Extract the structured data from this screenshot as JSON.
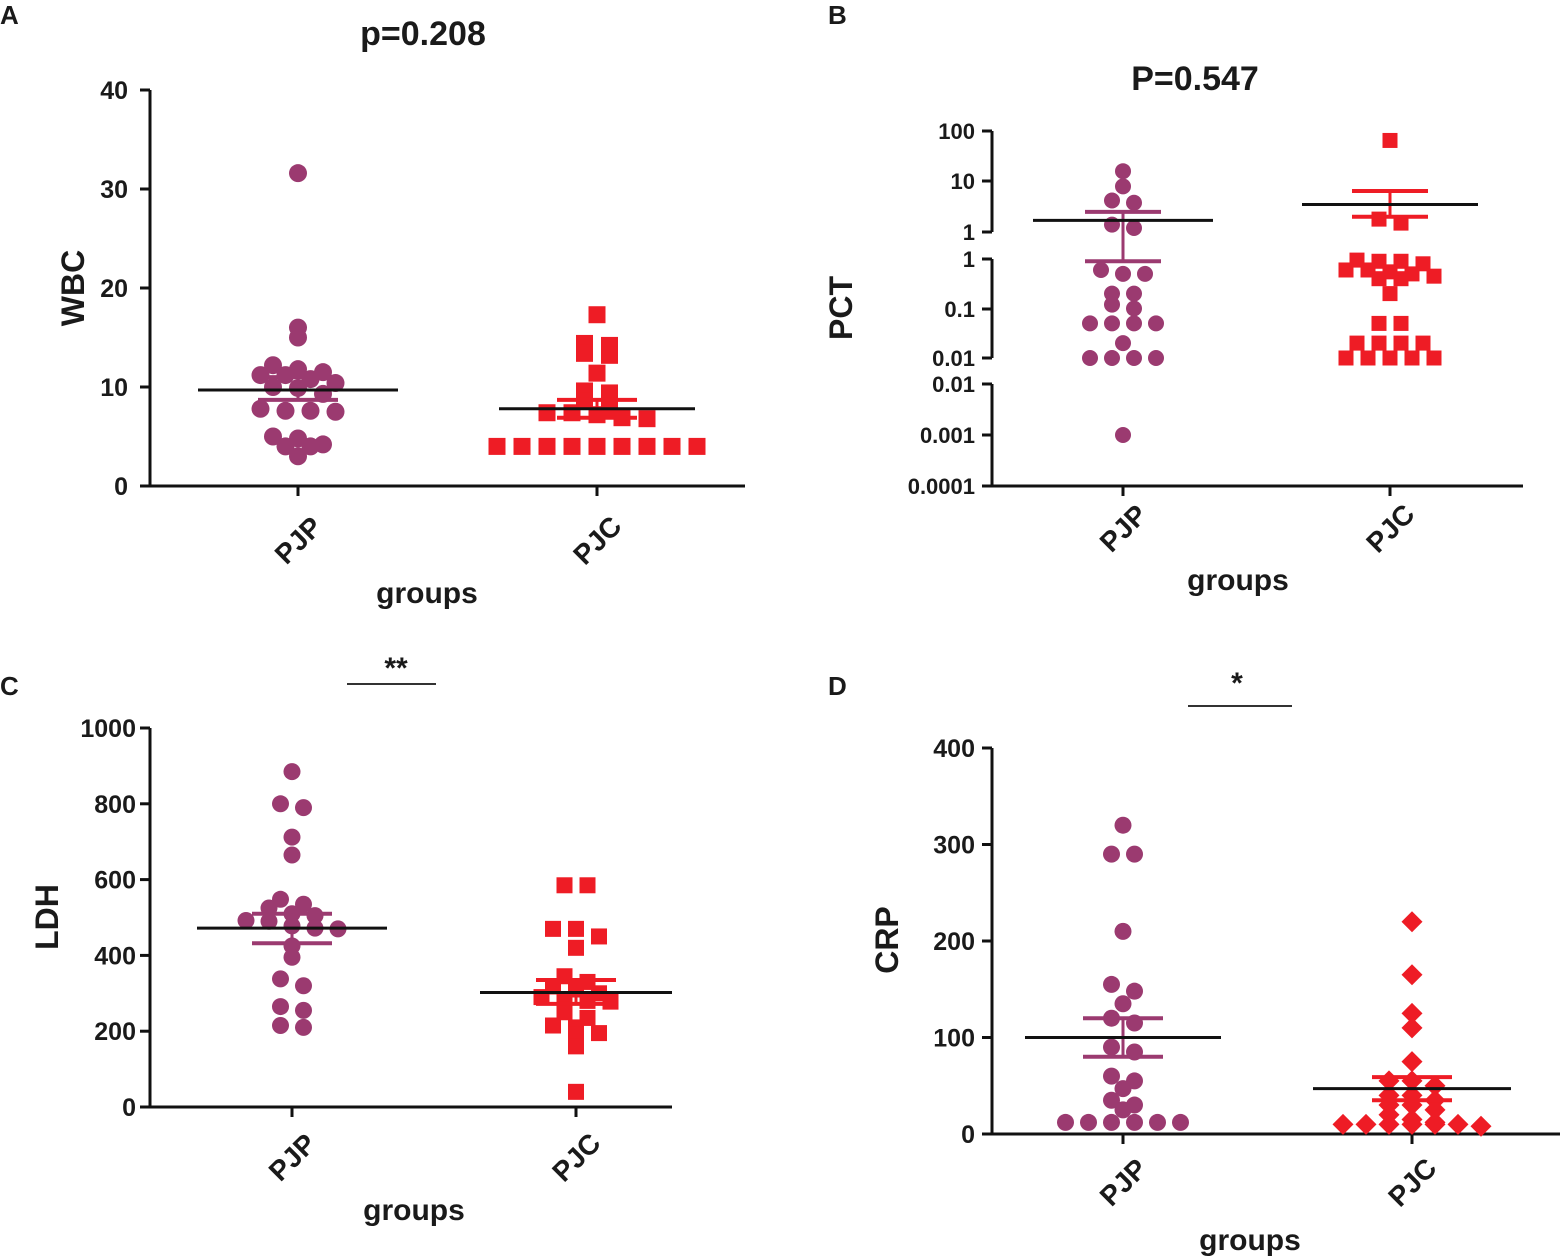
{
  "colors": {
    "pjp": "#9b3a70",
    "pjc": "#ee1c25",
    "mean_line": "#111111"
  },
  "chart_data": [
    {
      "panel": "A",
      "type": "scatter",
      "title": "p=0.208",
      "xlabel": "groups",
      "ylabel": "WBC",
      "categories": [
        "PJP",
        "PJC"
      ],
      "ylim": [
        0,
        40
      ],
      "yticks": [
        "0",
        "10",
        "20",
        "30",
        "40"
      ],
      "series": [
        {
          "name": "PJP",
          "marker": "circle",
          "mean": 9.7,
          "sem": [
            8.7,
            11.0
          ],
          "values": [
            31.6,
            16.0,
            15.0,
            12.2,
            11.8,
            11.5,
            11.2,
            11.2,
            10.8,
            10.4,
            10.0,
            9.9,
            9.3,
            7.8,
            7.6,
            7.6,
            7.5,
            5.0,
            4.8,
            4.2,
            4.0,
            4.0,
            3.0
          ]
        },
        {
          "name": "PJC",
          "marker": "square",
          "mean": 7.8,
          "sem": [
            6.9,
            8.7
          ],
          "values": [
            17.3,
            14.4,
            14.2,
            13.4,
            13.2,
            11.4,
            9.6,
            9.4,
            8.6,
            7.8,
            7.4,
            7.4,
            7.2,
            6.9,
            6.8,
            4.0,
            4.0,
            4.0,
            4.0,
            4.0,
            4.0,
            4.0,
            4.0,
            4.0
          ]
        }
      ]
    },
    {
      "panel": "B",
      "type": "scatter",
      "title": "P=0.547",
      "xlabel": "groups",
      "ylabel": "PCT",
      "categories": [
        "PJP",
        "PJC"
      ],
      "yscale": "log (segmented, broken axis)",
      "ytick_labels": [
        "100",
        "10",
        "1",
        "1",
        "0.1",
        "0.01",
        "0.01",
        "0.001",
        "0.0001"
      ],
      "series": [
        {
          "name": "PJP",
          "marker": "circle",
          "mean": 1.7,
          "sem": [
            0.9,
            2.5
          ],
          "values": [
            16,
            8,
            4.2,
            3.8,
            1.4,
            1.2,
            0.6,
            0.5,
            0.5,
            0.2,
            0.2,
            0.12,
            0.1,
            0.05,
            0.05,
            0.05,
            0.05,
            0.02,
            0.01,
            0.01,
            0.01,
            0.01,
            0.001
          ]
        },
        {
          "name": "PJC",
          "marker": "square",
          "mean": 3.5,
          "sem": [
            2.0,
            6.5
          ],
          "values": [
            65,
            1.8,
            1.5,
            0.95,
            0.9,
            0.9,
            0.8,
            0.6,
            0.6,
            0.55,
            0.5,
            0.45,
            0.4,
            0.4,
            0.2,
            0.05,
            0.05,
            0.02,
            0.02,
            0.02,
            0.02,
            0.01,
            0.01,
            0.01,
            0.01,
            0.01
          ]
        }
      ]
    },
    {
      "panel": "C",
      "type": "scatter",
      "title": "",
      "significance": "**",
      "xlabel": "groups",
      "ylabel": "LDH",
      "categories": [
        "PJP",
        "PJC"
      ],
      "ylim": [
        0,
        1000
      ],
      "yticks": [
        "0",
        "200",
        "400",
        "600",
        "800",
        "1000"
      ],
      "series": [
        {
          "name": "PJP",
          "marker": "circle",
          "mean": 472,
          "sem": [
            432,
            510
          ],
          "values": [
            885,
            800,
            790,
            712,
            665,
            548,
            535,
            525,
            510,
            505,
            492,
            490,
            478,
            472,
            470,
            425,
            395,
            338,
            320,
            265,
            255,
            215,
            210
          ]
        },
        {
          "name": "PJC",
          "marker": "square",
          "mean": 302,
          "sem": [
            272,
            335
          ],
          "values": [
            585,
            585,
            470,
            470,
            450,
            420,
            345,
            330,
            318,
            310,
            300,
            290,
            285,
            280,
            278,
            250,
            235,
            215,
            210,
            195,
            190,
            160,
            40
          ]
        }
      ]
    },
    {
      "panel": "D",
      "type": "scatter",
      "title": "",
      "significance": "*",
      "xlabel": "groups",
      "ylabel": "CRP",
      "categories": [
        "PJP",
        "PJC"
      ],
      "ylim": [
        0,
        400
      ],
      "yticks": [
        "0",
        "100",
        "200",
        "300",
        "400"
      ],
      "series": [
        {
          "name": "PJP",
          "marker": "circle",
          "mean": 100,
          "sem": [
            80,
            120
          ],
          "values": [
            320,
            290,
            290,
            210,
            155,
            148,
            135,
            120,
            115,
            90,
            85,
            60,
            55,
            47,
            35,
            30,
            25,
            12,
            12,
            12,
            12,
            12,
            12
          ]
        },
        {
          "name": "PJC",
          "marker": "diamond",
          "mean": 47,
          "sem": [
            35,
            59
          ],
          "values": [
            220,
            165,
            125,
            110,
            75,
            55,
            55,
            50,
            40,
            40,
            35,
            30,
            30,
            25,
            20,
            15,
            12,
            10,
            10,
            10,
            10,
            10,
            10,
            8
          ]
        }
      ]
    }
  ]
}
